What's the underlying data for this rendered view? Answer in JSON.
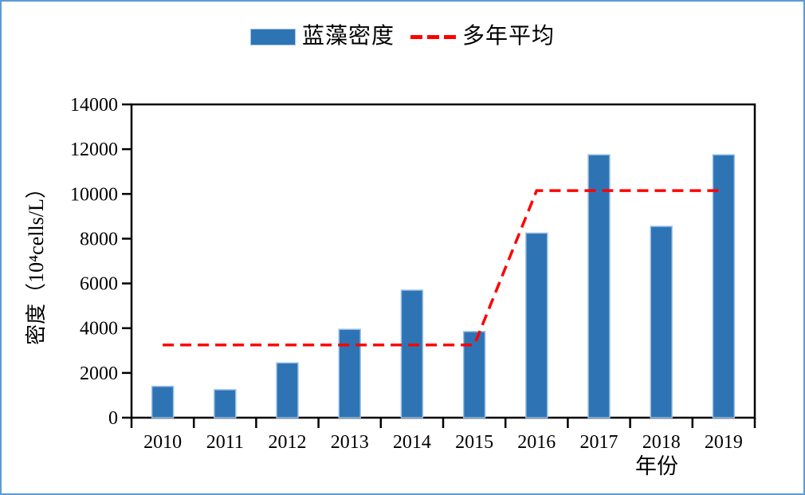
{
  "chart_data": {
    "type": "bar",
    "categories": [
      "2010",
      "2011",
      "2012",
      "2013",
      "2014",
      "2015",
      "2016",
      "2017",
      "2018",
      "2019"
    ],
    "series": [
      {
        "name": "蓝藻密度",
        "type": "bar",
        "color": "#2E74B5",
        "edge_color": "#9DC3E6",
        "values": [
          1400,
          1250,
          2450,
          3950,
          5700,
          3850,
          8250,
          11750,
          8550,
          11750
        ]
      },
      {
        "name": "多年平均",
        "type": "dashed-line",
        "color": "#FF0000",
        "values": [
          3250,
          3250,
          3250,
          3250,
          3250,
          3250,
          10150,
          10150,
          10150,
          10150
        ]
      }
    ],
    "title": "",
    "xlabel": "年份",
    "ylabel": "密度（10⁴cells/L）",
    "ylim": [
      0,
      14000
    ],
    "ytick_step": 2000,
    "yticks": [
      "0",
      "2000",
      "4000",
      "6000",
      "8000",
      "10000",
      "12000",
      "14000"
    ],
    "grid": false,
    "plot_border": "full-box",
    "legend_position": "top-center"
  },
  "legend": {
    "items": [
      {
        "label": "蓝藻密度",
        "swatch": "bar",
        "color": "#2E74B5"
      },
      {
        "label": "多年平均",
        "swatch": "dashed-line",
        "color": "#FF0000"
      }
    ]
  },
  "colors": {
    "bar": "#2E74B5",
    "bar_edge": "#9DC3E6",
    "average_line": "#FF0000",
    "axis": "#000000",
    "window_frame": "#5B9BD5",
    "background": "#FFFFFF"
  }
}
